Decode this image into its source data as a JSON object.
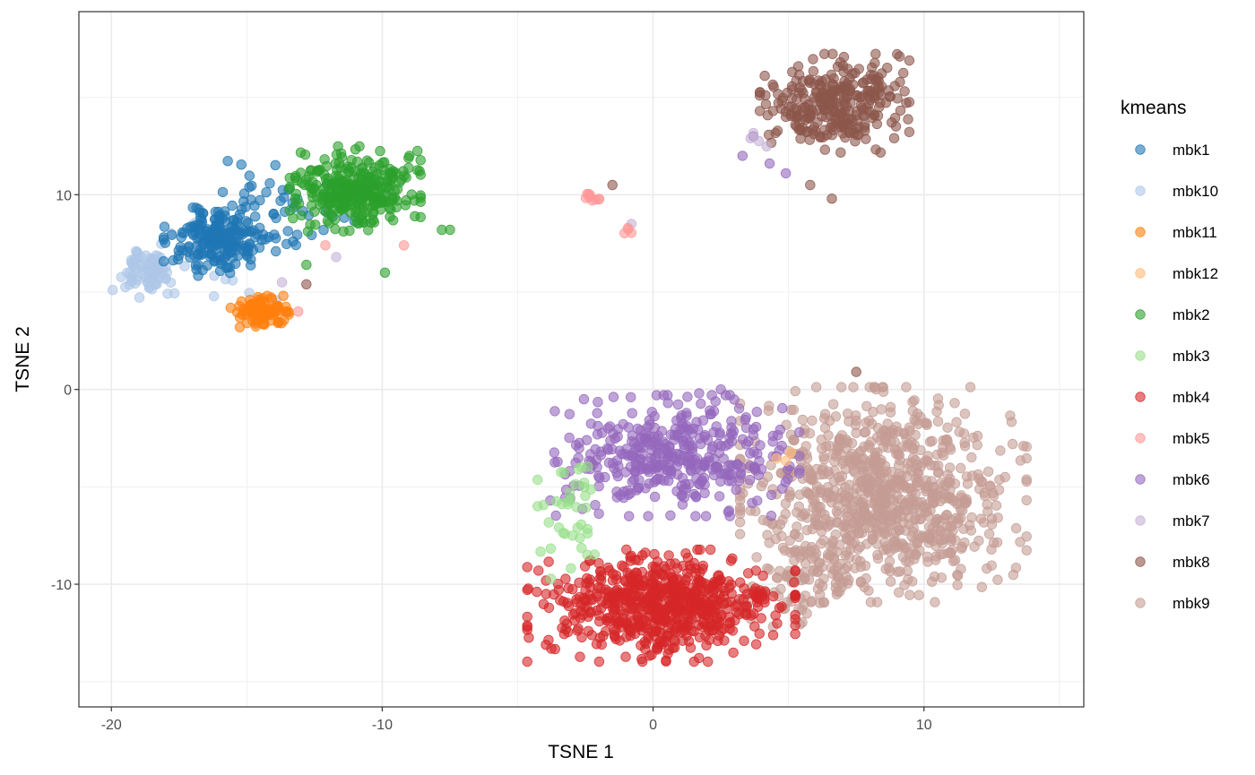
{
  "chart_data": {
    "type": "scatter",
    "title": "",
    "xlabel": "TSNE 1",
    "ylabel": "TSNE 2",
    "xlim": [
      -21.2,
      15.9
    ],
    "ylim": [
      -16.3,
      19.4
    ],
    "xticks": [
      -20,
      -10,
      0,
      10
    ],
    "yticks": [
      -10,
      0,
      10
    ],
    "grid": true,
    "legend_title": "kmeans",
    "legend_position": "right",
    "point_alpha": 0.6,
    "series": [
      {
        "name": "mbk1",
        "color": "#1f77b4",
        "clusters": [
          {
            "center": [
              -16.0,
              7.6
            ],
            "sd": [
              0.9,
              0.8
            ],
            "n": 190
          },
          {
            "center": [
              -14.0,
              9.2
            ],
            "sd": [
              1.3,
              1.1
            ],
            "n": 55
          }
        ]
      },
      {
        "name": "mbk10",
        "color": "#aec7e8",
        "clusters": [
          {
            "center": [
              -18.7,
              6.1
            ],
            "sd": [
              0.55,
              0.6
            ],
            "n": 70
          },
          {
            "center": [
              -16.5,
              6.6
            ],
            "sd": [
              1.2,
              0.9
            ],
            "n": 20
          }
        ]
      },
      {
        "name": "mbk11",
        "color": "#ff7f0e",
        "clusters": [
          {
            "center": [
              -14.6,
              4.0
            ],
            "sd": [
              0.5,
              0.35
            ],
            "n": 95
          }
        ]
      },
      {
        "name": "mbk12",
        "color": "#ffbb78",
        "clusters": [
          {
            "center": [
              4.8,
              -3.5
            ],
            "sd": [
              0.2,
              0.2
            ],
            "n": 3
          }
        ]
      },
      {
        "name": "mbk2",
        "color": "#2ca02c",
        "clusters": [
          {
            "center": [
              -11.0,
              10.3
            ],
            "sd": [
              1.05,
              0.95
            ],
            "n": 320
          }
        ],
        "extra_points": [
          [
            -7.8,
            8.2
          ],
          [
            -7.5,
            8.2
          ],
          [
            -9.9,
            6.0
          ],
          [
            -12.8,
            6.4
          ]
        ]
      },
      {
        "name": "mbk3",
        "color": "#98df8a",
        "clusters": [
          {
            "center": [
              -3.0,
              -6.5
            ],
            "sd": [
              0.55,
              1.4
            ],
            "n": 38
          }
        ]
      },
      {
        "name": "mbk4",
        "color": "#d62728",
        "clusters": [
          {
            "center": [
              0.3,
              -11.1
            ],
            "sd": [
              2.15,
              1.25
            ],
            "n": 640
          }
        ]
      },
      {
        "name": "mbk5",
        "color": "#ff9896",
        "clusters": [
          {
            "center": [
              -2.3,
              9.8
            ],
            "sd": [
              0.2,
              0.15
            ],
            "n": 9
          },
          {
            "center": [
              -1.0,
              8.2
            ],
            "sd": [
              0.2,
              0.15
            ],
            "n": 4
          }
        ],
        "extra_points": [
          [
            -13.1,
            4.0
          ],
          [
            -9.2,
            7.4
          ],
          [
            -12.1,
            7.4
          ]
        ]
      },
      {
        "name": "mbk6",
        "color": "#9467bd",
        "clusters": [
          {
            "center": [
              0.8,
              -3.4
            ],
            "sd": [
              2.0,
              1.35
            ],
            "n": 390
          }
        ],
        "extra_points": [
          [
            3.3,
            12.0
          ],
          [
            4.9,
            11.1
          ],
          [
            4.3,
            11.6
          ],
          [
            3.7,
            13.0
          ],
          [
            1.7,
            -0.2
          ],
          [
            2.5,
            0.0
          ]
        ]
      },
      {
        "name": "mbk7",
        "color": "#c5b0d5",
        "clusters": [
          {
            "center": [
              3.8,
              12.9
            ],
            "sd": [
              0.35,
              0.35
            ],
            "n": 4
          }
        ],
        "extra_points": [
          [
            -11.7,
            6.8
          ],
          [
            -13.7,
            5.5
          ],
          [
            -0.8,
            8.5
          ]
        ]
      },
      {
        "name": "mbk8",
        "color": "#8c564b",
        "clusters": [
          {
            "center": [
              6.7,
              14.7
            ],
            "sd": [
              1.2,
              1.1
            ],
            "n": 290
          }
        ],
        "extra_points": [
          [
            5.8,
            10.5
          ],
          [
            6.6,
            9.8
          ],
          [
            7.5,
            0.9
          ],
          [
            -1.5,
            10.5
          ],
          [
            -12.8,
            5.4
          ]
        ]
      },
      {
        "name": "mbk9",
        "color": "#c49c94",
        "clusters": [
          {
            "center": [
              8.5,
              -5.4
            ],
            "sd": [
              2.3,
              2.4
            ],
            "n": 880
          },
          {
            "center": [
              5.5,
              -10.0
            ],
            "sd": [
              1.0,
              1.1
            ],
            "n": 70
          }
        ]
      }
    ]
  }
}
